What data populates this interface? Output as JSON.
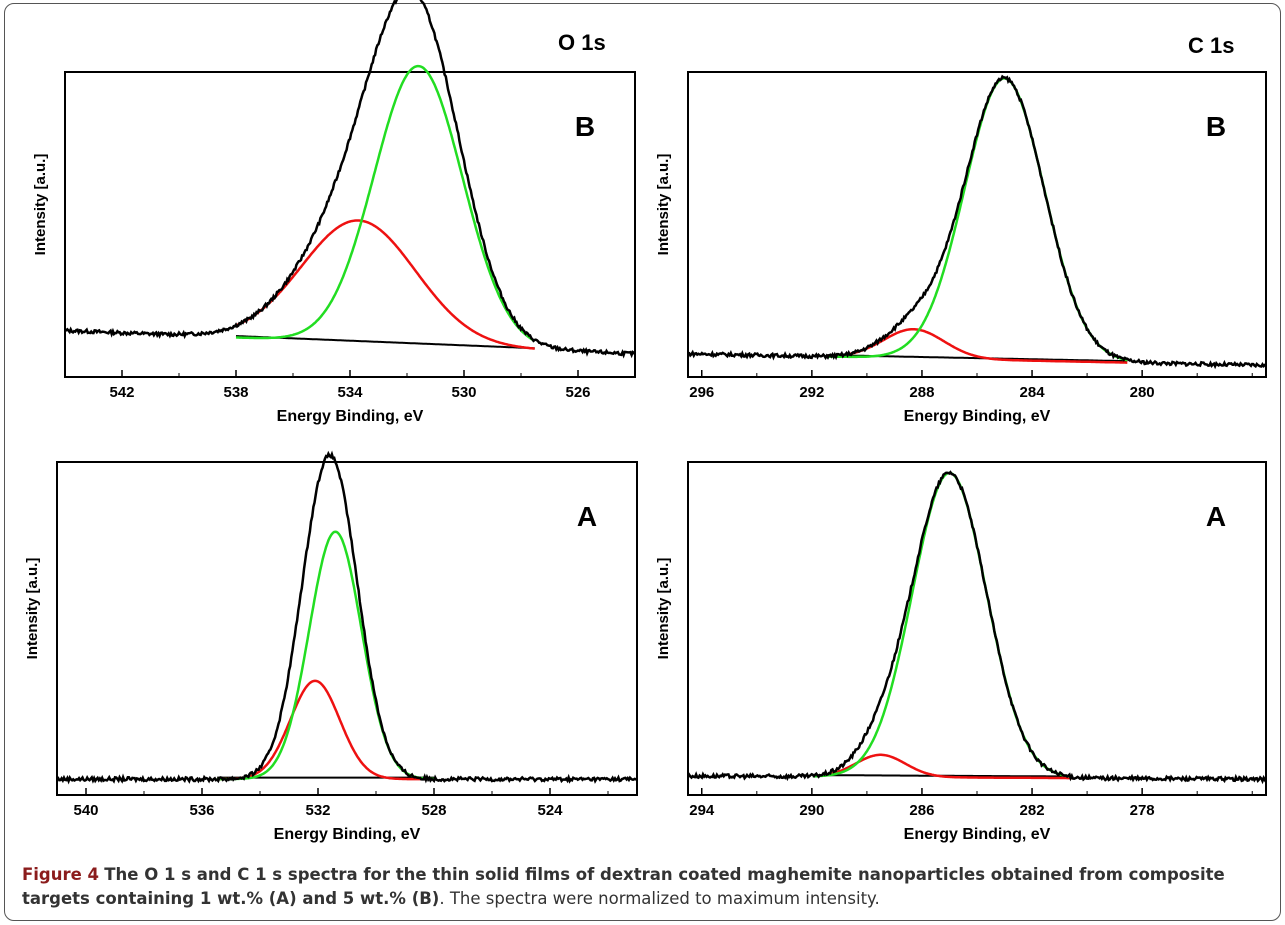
{
  "figure": {
    "col_heads": [
      "O 1s",
      "C 1s"
    ],
    "caption_label": "Figure 4",
    "caption_bold": "The O 1 s and C 1 s spectra for the thin solid films of dextran coated maghemite nanoparticles obtained from composite",
    "caption_bold_2": "targets containing 1 wt.% (A) and 5 wt.% (B)",
    "caption_normal": ". The spectra were normalized to maximum intensity."
  },
  "colors": {
    "envelope": "#000000",
    "comp_main": "#22dd22",
    "comp_minor": "#ee1111",
    "axis": "#000000"
  },
  "chart_data": [
    {
      "id": "O1s-B",
      "type": "line",
      "panel_label": "B",
      "xlabel": "Energy Binding, eV",
      "ylabel": "Intensity [a.u.]",
      "xlim": [
        544,
        524
      ],
      "ylim": [
        0,
        1.05
      ],
      "ticks": [
        542,
        538,
        534,
        530,
        526
      ],
      "tick_labels": [
        "542",
        "538",
        "534",
        "530",
        "526"
      ],
      "baseline": {
        "left": 0.16,
        "right": 0.08,
        "x1": 538,
        "x2": 527.5
      },
      "peaks": [
        {
          "name": "green",
          "center": 531.6,
          "height": 0.96,
          "sigma": 1.55
        },
        {
          "name": "red",
          "center": 533.7,
          "height": 0.42,
          "sigma": 2.0
        }
      ],
      "tails": {
        "left_start": 538,
        "right_end": 527.5,
        "rise": 0.02
      }
    },
    {
      "id": "C1s-B",
      "type": "line",
      "panel_label": "B",
      "xlabel": "Energy Binding, eV",
      "ylabel": "Intensity [a.u.]",
      "xlim": [
        296.5,
        275.5
      ],
      "ylim": [
        0,
        1.05
      ],
      "ticks": [
        296,
        292,
        288,
        284,
        280
      ],
      "tick_labels": [
        "296",
        "292",
        "288",
        "284",
        "280"
      ],
      "baseline": {
        "left": 0.08,
        "right": 0.04,
        "x1": 291.5,
        "x2": 280.5
      },
      "peaks": [
        {
          "name": "green",
          "center": 285.0,
          "height": 0.97,
          "sigma": 1.45
        },
        {
          "name": "red",
          "center": 288.3,
          "height": 0.1,
          "sigma": 1.1
        }
      ],
      "tails": {
        "left_start": 291.5,
        "right_end": 280.5,
        "rise": 0.02
      }
    },
    {
      "id": "O1s-A",
      "type": "line",
      "panel_label": "A",
      "xlabel": "Energy Binding, eV",
      "ylabel": "Intensity [a.u.]",
      "xlim": [
        541,
        521
      ],
      "ylim": [
        0,
        1.05
      ],
      "ticks": [
        540,
        536,
        532,
        528,
        524
      ],
      "tick_labels": [
        "540",
        "536",
        "532",
        "528",
        "524"
      ],
      "baseline": {
        "left": 0.05,
        "right": 0.05,
        "x1": 535.5,
        "x2": 528
      },
      "peaks": [
        {
          "name": "green",
          "center": 531.4,
          "height": 0.78,
          "sigma": 0.9
        },
        {
          "name": "red",
          "center": 532.1,
          "height": 0.31,
          "sigma": 0.85
        }
      ],
      "tails": {
        "left_start": 535.5,
        "right_end": 528,
        "rise": 0.02
      }
    },
    {
      "id": "C1s-A",
      "type": "line",
      "panel_label": "A",
      "xlabel": "Energy Binding, eV",
      "ylabel": "Intensity [a.u.]",
      "xlim": [
        294.5,
        273.5
      ],
      "ylim": [
        0,
        1.05
      ],
      "ticks": [
        294,
        290,
        286,
        282,
        278
      ],
      "tick_labels": [
        "294",
        "290",
        "286",
        "282",
        "278"
      ],
      "baseline": {
        "left": 0.06,
        "right": 0.05,
        "x1": 290,
        "x2": 280.5
      },
      "peaks": [
        {
          "name": "green",
          "center": 285.0,
          "height": 0.96,
          "sigma": 1.35
        },
        {
          "name": "red",
          "center": 287.5,
          "height": 0.07,
          "sigma": 0.9
        }
      ],
      "tails": {
        "left_start": 290,
        "right_end": 280.5,
        "rise": 0.02
      }
    }
  ]
}
